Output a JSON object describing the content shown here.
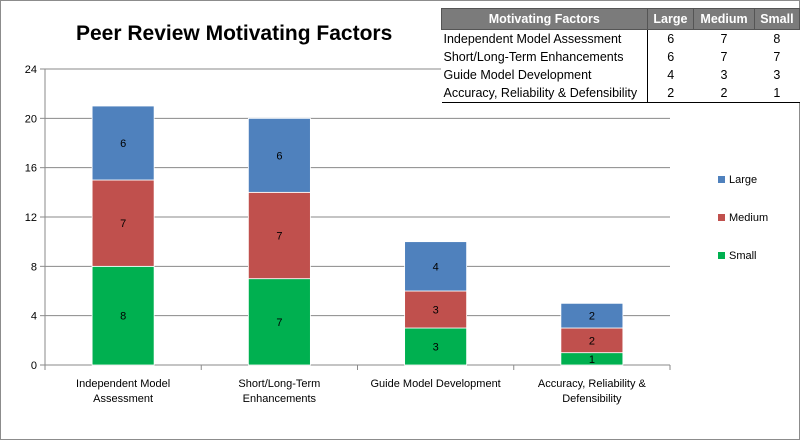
{
  "chart_data": {
    "type": "bar",
    "stacked": true,
    "title": "Peer Review Motivating Factors",
    "categories": [
      [
        "Independent Model",
        "Assessment"
      ],
      [
        "Short/Long-Term",
        "Enhancements"
      ],
      [
        "Guide Model Development"
      ],
      [
        "Accuracy, Reliability &",
        "Defensibility"
      ]
    ],
    "series": [
      {
        "name": "Small",
        "color": "#00b050",
        "values": [
          8,
          7,
          3,
          1
        ]
      },
      {
        "name": "Medium",
        "color": "#c0504d",
        "values": [
          7,
          7,
          3,
          2
        ]
      },
      {
        "name": "Large",
        "color": "#4f81bd",
        "values": [
          6,
          6,
          4,
          2
        ]
      }
    ],
    "legend_order": [
      "Large",
      "Medium",
      "Small"
    ],
    "legend_position": "right",
    "ylim": [
      0,
      24
    ],
    "yticks": [
      0,
      4,
      8,
      12,
      16,
      20,
      24
    ],
    "xlabel": "",
    "ylabel": "",
    "grid": true
  },
  "table": {
    "headers": [
      "Motivating Factors",
      "Large",
      "Medium",
      "Small"
    ],
    "rows": [
      {
        "factor": "Independent Model Assessment",
        "large": "6",
        "medium": "7",
        "small": "8"
      },
      {
        "factor": "Short/Long-Term Enhancements",
        "large": "6",
        "medium": "7",
        "small": "7"
      },
      {
        "factor": "Guide Model Development",
        "large": "4",
        "medium": "3",
        "small": "3"
      },
      {
        "factor": "Accuracy, Reliability & Defensibility",
        "large": "2",
        "medium": "2",
        "small": "1"
      }
    ]
  }
}
